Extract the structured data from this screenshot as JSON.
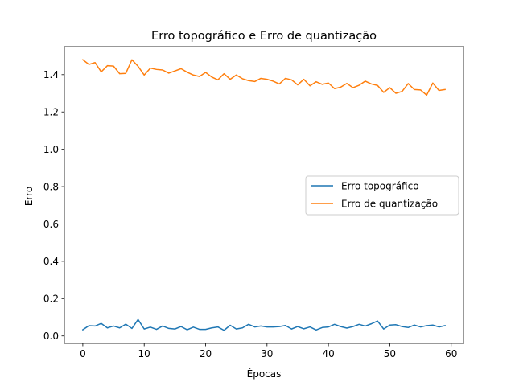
{
  "chart_data": {
    "type": "line",
    "title": "Erro topográfico e Erro de quantização",
    "xlabel": "Épocas",
    "ylabel": "Erro",
    "xlim": [
      -3,
      62
    ],
    "ylim": [
      -0.04,
      1.55
    ],
    "xticks": [
      0,
      10,
      20,
      30,
      40,
      50,
      60
    ],
    "yticks": [
      0.0,
      0.2,
      0.4,
      0.6,
      0.8,
      1.0,
      1.2,
      1.4
    ],
    "grid": false,
    "legend_position": "center-right",
    "x": [
      0,
      1,
      2,
      3,
      4,
      5,
      6,
      7,
      8,
      9,
      10,
      11,
      12,
      13,
      14,
      15,
      16,
      17,
      18,
      19,
      20,
      21,
      22,
      23,
      24,
      25,
      26,
      27,
      28,
      29,
      30,
      31,
      32,
      33,
      34,
      35,
      36,
      37,
      38,
      39,
      40,
      41,
      42,
      43,
      44,
      45,
      46,
      47,
      48,
      49,
      50,
      51,
      52,
      53,
      54,
      55,
      56,
      57,
      58,
      59
    ],
    "series": [
      {
        "name": "Erro topográfico",
        "color": "#1f77b4",
        "values": [
          0.033,
          0.055,
          0.053,
          0.067,
          0.043,
          0.053,
          0.043,
          0.063,
          0.04,
          0.088,
          0.037,
          0.047,
          0.035,
          0.053,
          0.04,
          0.037,
          0.05,
          0.033,
          0.047,
          0.035,
          0.035,
          0.043,
          0.048,
          0.03,
          0.057,
          0.037,
          0.043,
          0.062,
          0.048,
          0.053,
          0.048,
          0.048,
          0.05,
          0.056,
          0.037,
          0.05,
          0.038,
          0.048,
          0.032,
          0.045,
          0.048,
          0.062,
          0.05,
          0.042,
          0.05,
          0.062,
          0.053,
          0.065,
          0.08,
          0.037,
          0.058,
          0.06,
          0.05,
          0.045,
          0.058,
          0.048,
          0.055,
          0.058,
          0.048,
          0.055
        ]
      },
      {
        "name": "Erro de quantização",
        "color": "#ff7f0e",
        "values": [
          1.48,
          1.455,
          1.465,
          1.415,
          1.448,
          1.446,
          1.405,
          1.407,
          1.48,
          1.445,
          1.398,
          1.435,
          1.428,
          1.425,
          1.408,
          1.42,
          1.432,
          1.413,
          1.398,
          1.39,
          1.412,
          1.387,
          1.372,
          1.405,
          1.375,
          1.398,
          1.378,
          1.368,
          1.363,
          1.38,
          1.375,
          1.365,
          1.35,
          1.38,
          1.372,
          1.345,
          1.375,
          1.34,
          1.362,
          1.348,
          1.355,
          1.325,
          1.333,
          1.353,
          1.33,
          1.343,
          1.365,
          1.35,
          1.342,
          1.305,
          1.33,
          1.3,
          1.31,
          1.352,
          1.32,
          1.318,
          1.29,
          1.355,
          1.315,
          1.32
        ]
      }
    ]
  }
}
